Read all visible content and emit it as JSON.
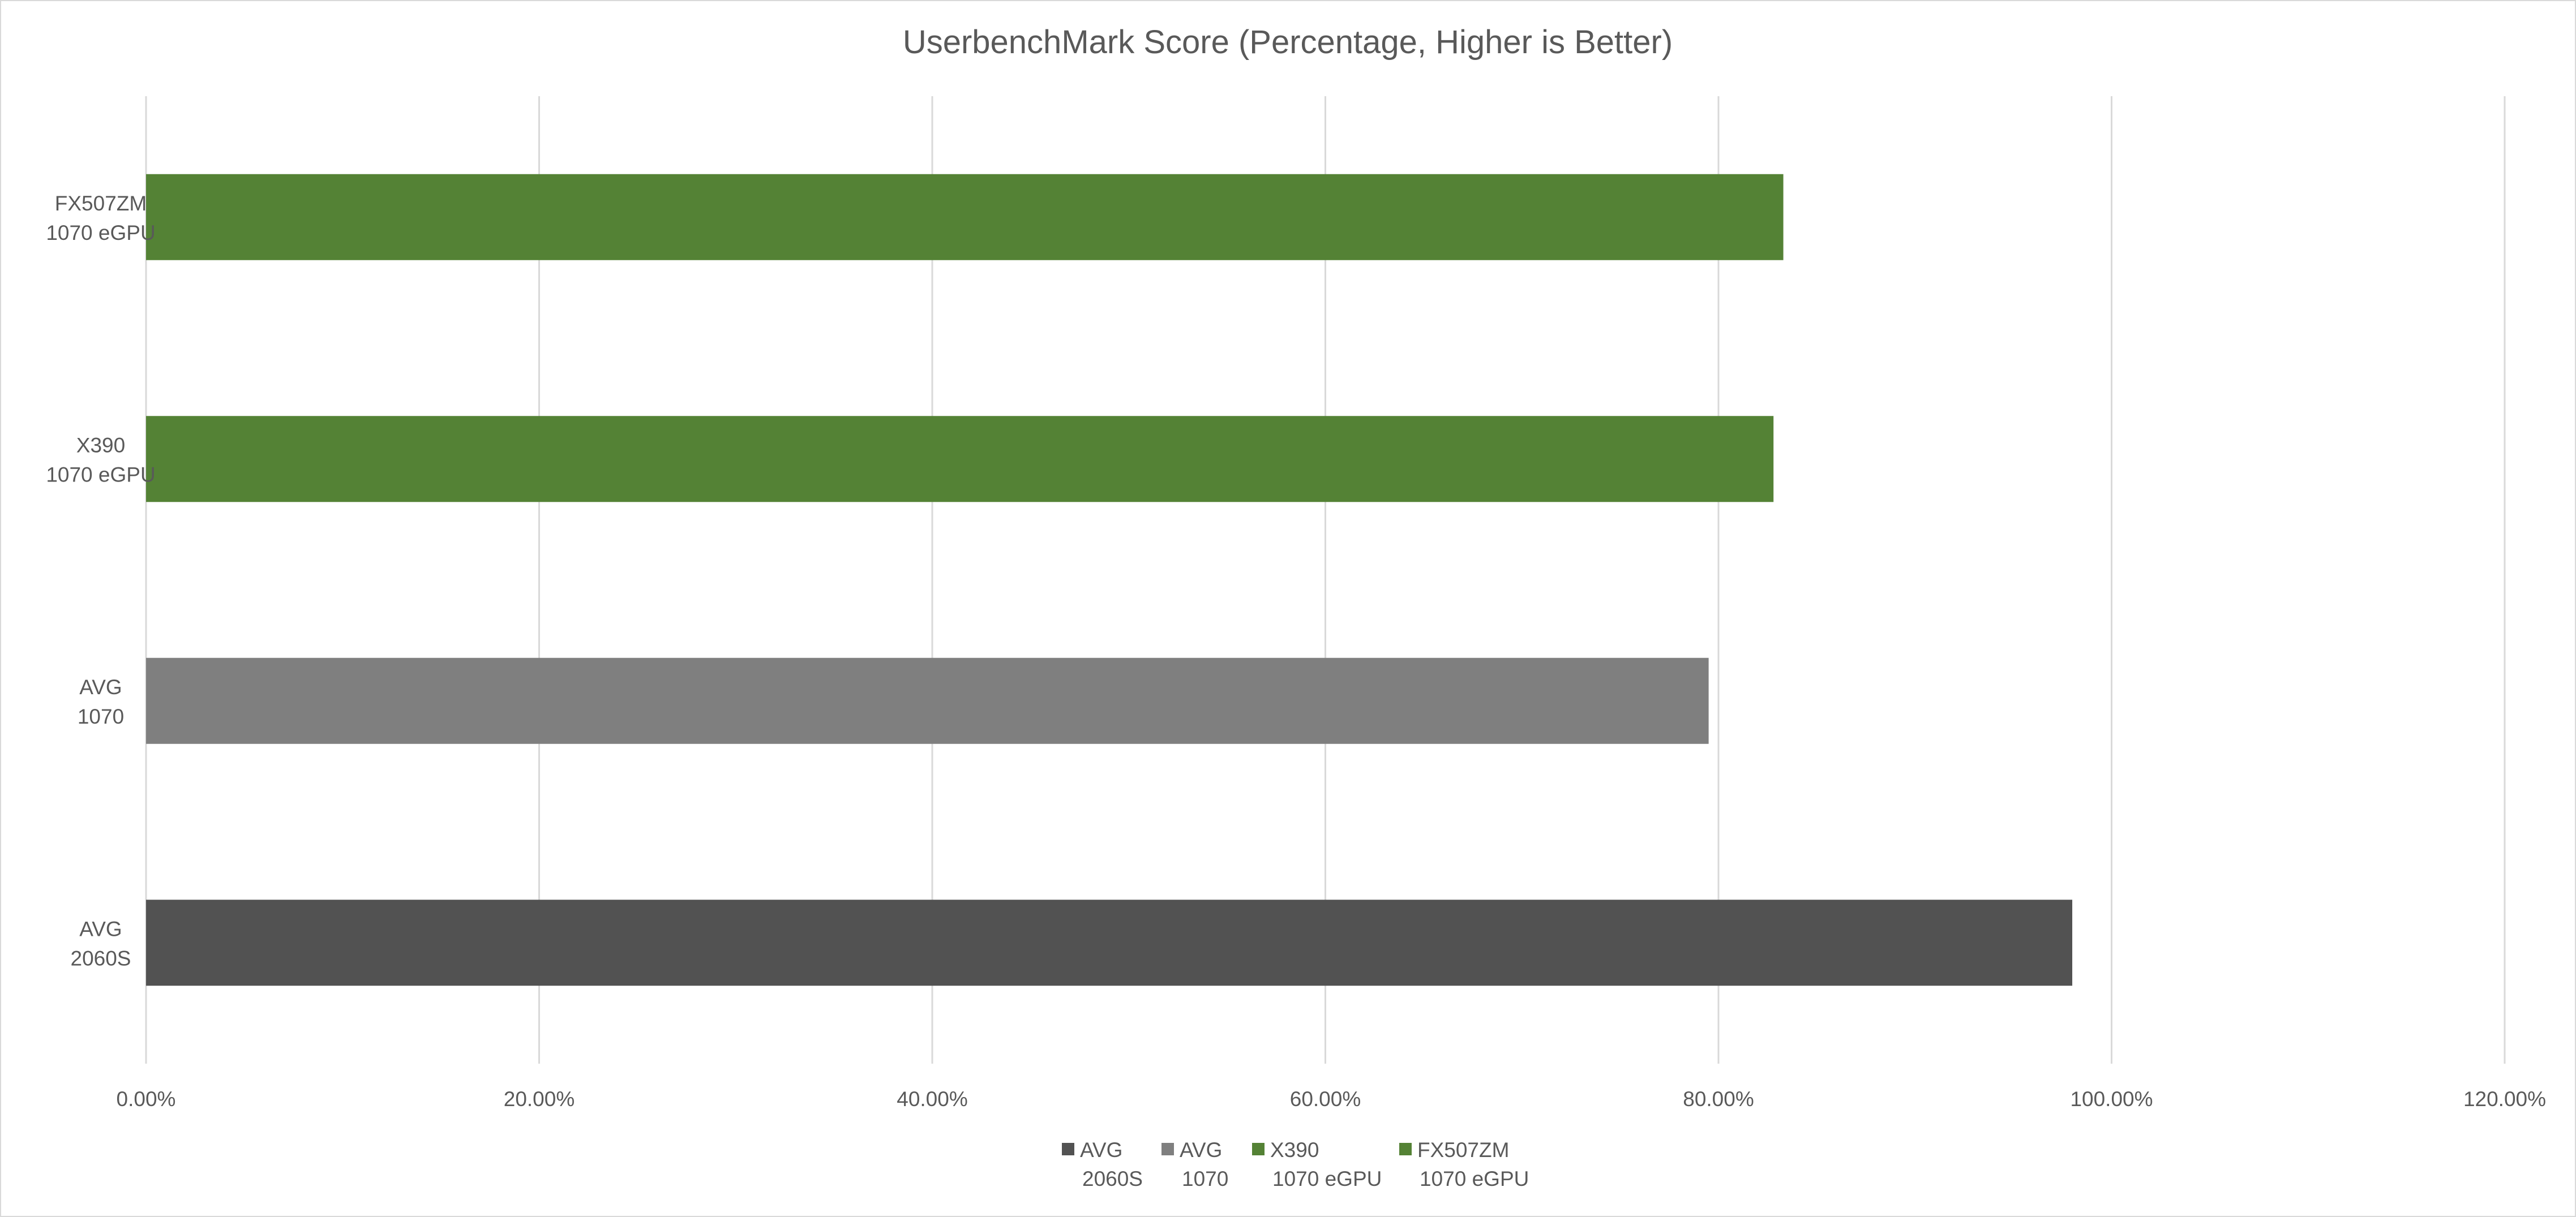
{
  "chart_data": {
    "type": "bar",
    "orientation": "horizontal",
    "title": "UserbenchMark Score (Percentage, Higher is Better)",
    "xlabel": "",
    "ylabel": "",
    "xlim": [
      0,
      120
    ],
    "x_ticks": [
      "0.00%",
      "20.00%",
      "40.00%",
      "60.00%",
      "80.00%",
      "100.00%",
      "120.00%"
    ],
    "grid": "vertical",
    "legend_position": "bottom",
    "categories": [
      [
        "AVG",
        "2060S"
      ],
      [
        "AVG",
        "1070"
      ],
      [
        "X390",
        "1070 eGPU"
      ],
      [
        "FX507ZM",
        "1070 eGPU"
      ]
    ],
    "values": [
      98.0,
      79.5,
      82.8,
      83.3
    ],
    "colors": [
      "#525252",
      "#7f7f7f",
      "#548235",
      "#548235"
    ],
    "legend": [
      {
        "label": [
          "AVG",
          "2060S"
        ],
        "color": "#525252"
      },
      {
        "label": [
          "AVG",
          "1070"
        ],
        "color": "#7f7f7f"
      },
      {
        "label": [
          "X390",
          "1070 eGPU"
        ],
        "color": "#548235"
      },
      {
        "label": [
          "FX507ZM",
          "1070 eGPU"
        ],
        "color": "#548235"
      }
    ]
  }
}
